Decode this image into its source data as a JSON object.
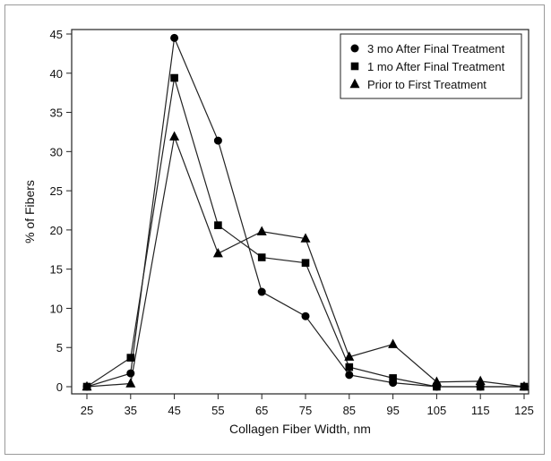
{
  "chart_data": {
    "type": "line",
    "title": "",
    "xlabel": "Collagen Fiber Width, nm",
    "ylabel": "% of Fibers",
    "x": [
      25,
      35,
      45,
      55,
      65,
      75,
      85,
      95,
      105,
      115,
      125
    ],
    "xlim": [
      25,
      125
    ],
    "ylim": [
      0,
      45
    ],
    "xticks": [
      "25",
      "35",
      "45",
      "55",
      "65",
      "75",
      "85",
      "95",
      "105",
      "115",
      "125"
    ],
    "yticks": [
      "0",
      "5",
      "10",
      "15",
      "20",
      "25",
      "30",
      "35",
      "40",
      "45"
    ],
    "grid": false,
    "legend_position": "top-right",
    "series": [
      {
        "name": "3 mo After Final Treatment",
        "marker": "circle",
        "values": [
          0,
          1.7,
          44.5,
          31.4,
          12.1,
          9.0,
          1.5,
          0.5,
          0,
          0,
          0
        ]
      },
      {
        "name": "1 mo After Final Treatment",
        "marker": "square",
        "values": [
          0,
          3.7,
          39.4,
          20.6,
          16.5,
          15.8,
          2.5,
          1.1,
          0,
          0,
          0
        ]
      },
      {
        "name": "Prior to First Treatment",
        "marker": "triangle",
        "values": [
          0,
          0.4,
          31.9,
          17.0,
          19.8,
          18.9,
          3.8,
          5.4,
          0.6,
          0.7,
          0
        ]
      }
    ]
  }
}
